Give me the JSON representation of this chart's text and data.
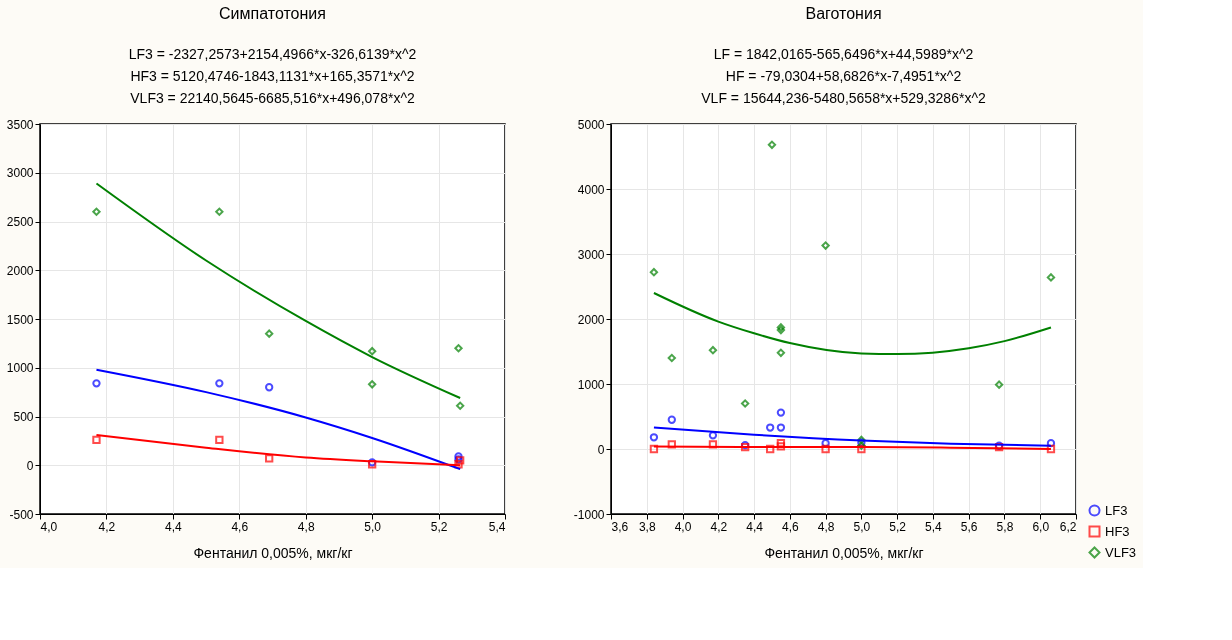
{
  "chart_data": [
    {
      "type": "scatter",
      "title": "Симпатотония",
      "annotations": [
        "LF3 = -2327,2573+2154,4966*x-326,6139*x^2",
        "HF3 = 5120,4746-1843,1131*x+165,3571*x^2",
        "VLF3 = 22140,5645-6685,516*x+496,078*x^2"
      ],
      "xlabel": "Фентанил 0,005%, мкг/кг",
      "xlim": [
        4.0,
        5.4
      ],
      "xticks": [
        {
          "value": 4.0,
          "label": "4,0"
        },
        {
          "value": 4.2,
          "label": "4,2"
        },
        {
          "value": 4.4,
          "label": "4,4"
        },
        {
          "value": 4.6,
          "label": "4,6"
        },
        {
          "value": 4.8,
          "label": "4,8"
        },
        {
          "value": 5.0,
          "label": "5,0"
        },
        {
          "value": 5.2,
          "label": "5,2"
        },
        {
          "value": 5.4,
          "label": "5,4"
        }
      ],
      "ylim": [
        -500,
        3500
      ],
      "yticks": [
        -500,
        0,
        500,
        1000,
        1500,
        2000,
        2500,
        3000,
        3500
      ],
      "grid": true,
      "legend": false,
      "series": [
        {
          "type": "scatter",
          "marker": "circle",
          "color": "#0000ff",
          "x": [
            4.17,
            4.54,
            4.69,
            5.0,
            5.26,
            5.26
          ],
          "values": [
            840,
            840,
            800,
            30,
            90,
            60
          ]
        },
        {
          "type": "scatter",
          "marker": "square",
          "color": "#ff0000",
          "x": [
            4.17,
            4.54,
            4.69,
            5.0,
            5.26,
            5.265
          ],
          "values": [
            260,
            260,
            70,
            10,
            10,
            50
          ]
        },
        {
          "type": "scatter",
          "marker": "diamond",
          "color": "#008000",
          "x": [
            4.17,
            4.54,
            4.69,
            5.0,
            5.0,
            5.26,
            5.265
          ],
          "values": [
            2600,
            2600,
            1350,
            1170,
            830,
            1200,
            610
          ]
        },
        {
          "type": "line",
          "color": "#0000ff",
          "x": [
            4.17,
            4.5,
            4.8,
            5.0,
            5.265
          ],
          "values": [
            980,
            750,
            490,
            280,
            -40
          ]
        },
        {
          "type": "line",
          "color": "#ff0000",
          "x": [
            4.17,
            4.5,
            4.8,
            5.0,
            5.265
          ],
          "values": [
            310,
            180,
            80,
            40,
            0
          ]
        },
        {
          "type": "line",
          "color": "#008000",
          "x": [
            4.17,
            4.5,
            4.8,
            5.0,
            5.265
          ],
          "values": [
            2890,
            2100,
            1480,
            1110,
            690
          ]
        }
      ]
    },
    {
      "type": "scatter",
      "title": "Ваготония",
      "annotations": [
        "LF = 1842,0165-565,6496*x+44,5989*x^2",
        "HF = -79,0304+58,6826*x-7,4951*x^2",
        "VLF = 15644,236-5480,5658*x+529,3286*x^2"
      ],
      "xlabel": "Фентанил 0,005%, мкг/кг",
      "xlim": [
        3.6,
        6.2
      ],
      "xticks": [
        {
          "value": 3.6,
          "label": "3,6"
        },
        {
          "value": 3.8,
          "label": "3,8"
        },
        {
          "value": 4.0,
          "label": "4,0"
        },
        {
          "value": 4.2,
          "label": "4,2"
        },
        {
          "value": 4.4,
          "label": "4,4"
        },
        {
          "value": 4.6,
          "label": "4,6"
        },
        {
          "value": 4.8,
          "label": "4,8"
        },
        {
          "value": 5.0,
          "label": "5,0"
        },
        {
          "value": 5.2,
          "label": "5,2"
        },
        {
          "value": 5.4,
          "label": "5,4"
        },
        {
          "value": 5.6,
          "label": "5,6"
        },
        {
          "value": 5.8,
          "label": "5,8"
        },
        {
          "value": 6.0,
          "label": "6,0"
        },
        {
          "value": 6.2,
          "label": "6,2"
        }
      ],
      "ylim": [
        -1000,
        5000
      ],
      "yticks": [
        -1000,
        0,
        1000,
        2000,
        3000,
        4000,
        5000
      ],
      "grid": true,
      "legend": "bottom right",
      "series": [
        {
          "type": "scatter",
          "name": "LF3",
          "marker": "circle",
          "color": "#0000ff",
          "x": [
            3.84,
            3.94,
            4.17,
            4.35,
            4.49,
            4.55,
            4.55,
            4.8,
            5.0,
            5.77,
            6.06
          ],
          "values": [
            180,
            450,
            210,
            60,
            330,
            560,
            330,
            90,
            100,
            50,
            90
          ]
        },
        {
          "type": "scatter",
          "name": "HF3",
          "marker": "square",
          "color": "#ff0000",
          "x": [
            3.84,
            3.94,
            4.17,
            4.35,
            4.49,
            4.55,
            4.55,
            4.8,
            5.0,
            5.77,
            6.06
          ],
          "values": [
            0,
            70,
            70,
            30,
            0,
            90,
            40,
            0,
            0,
            30,
            0
          ]
        },
        {
          "type": "scatter",
          "name": "VLF3",
          "marker": "diamond",
          "color": "#008000",
          "x": [
            3.84,
            3.94,
            4.17,
            4.35,
            4.5,
            4.55,
            4.55,
            4.55,
            4.8,
            5.0,
            5.0,
            5.77,
            6.06
          ],
          "values": [
            2720,
            1400,
            1520,
            700,
            4680,
            1870,
            1830,
            1480,
            3130,
            140,
            50,
            990,
            2640
          ]
        },
        {
          "type": "line",
          "color": "#0000ff",
          "x": [
            3.84,
            4.4,
            5.0,
            5.5,
            6.06
          ],
          "values": [
            330,
            220,
            130,
            80,
            50
          ]
        },
        {
          "type": "line",
          "color": "#ff0000",
          "x": [
            3.84,
            4.4,
            5.0,
            5.5,
            6.06
          ],
          "values": [
            40,
            30,
            30,
            20,
            0
          ]
        },
        {
          "type": "line",
          "color": "#008000",
          "x": [
            3.84,
            4.2,
            4.4,
            4.6,
            5.0,
            5.2,
            5.6,
            5.8,
            6.06
          ],
          "values": [
            2400,
            1960,
            1780,
            1630,
            1470,
            1460,
            1550,
            1660,
            1870
          ]
        }
      ]
    }
  ]
}
